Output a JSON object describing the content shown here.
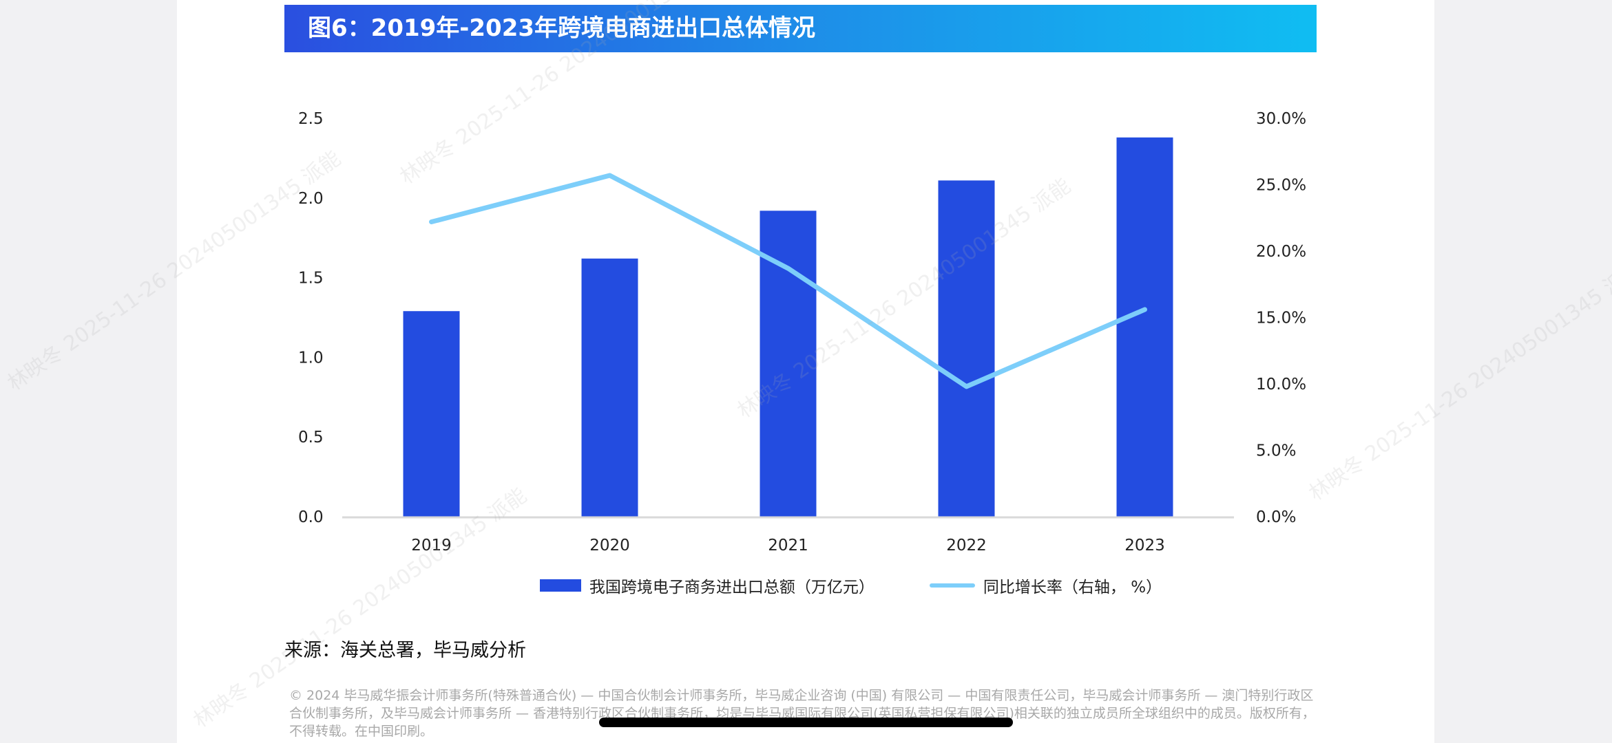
{
  "title": "图6：2019年-2023年跨境电商进出口总体情况",
  "chart_data": {
    "type": "bar+line",
    "categories": [
      "2019",
      "2020",
      "2021",
      "2022",
      "2023"
    ],
    "series": [
      {
        "name": "我国跨境电子商务进出口总额（万亿元）",
        "type": "bar",
        "axis": "left",
        "values": [
          1.29,
          1.62,
          1.92,
          2.11,
          2.38
        ],
        "color": "#234ce0"
      },
      {
        "name": "同比增长率（右轴，  %）",
        "type": "line",
        "axis": "right",
        "values": [
          22.2,
          25.7,
          18.7,
          9.8,
          15.6
        ],
        "color": "#7dcefa"
      }
    ],
    "y_left": {
      "range": [
        0,
        2.5
      ],
      "ticks": [
        "0.0",
        "0.5",
        "1.0",
        "1.5",
        "2.0",
        "2.5"
      ]
    },
    "y_right": {
      "range": [
        0,
        30
      ],
      "ticks": [
        "0.0%",
        "5.0%",
        "10.0%",
        "15.0%",
        "20.0%",
        "25.0%",
        "30.0%"
      ]
    },
    "grid": false,
    "legend": "bottom"
  },
  "source": "来源：海关总署，毕马威分析",
  "footer": "© 2024 毕马威华振会计师事务所(特殊普通合伙) — 中国合伙制会计师事务所，毕马威企业咨询 (中国) 有限公司 — 中国有限责任公司，毕马威会计师事务所 — 澳门特别行政区合伙制事务所，及毕马威会计师事务所 — 香港特别行政区合伙制事务所，均是与毕马威国际有限公司(英国私营担保有限公司)相关联的独立成员所全球组织中的成员。版权所有，不得转载。在中国印刷。",
  "watermark": "林映冬 2025-11-26 202405001345 派能"
}
